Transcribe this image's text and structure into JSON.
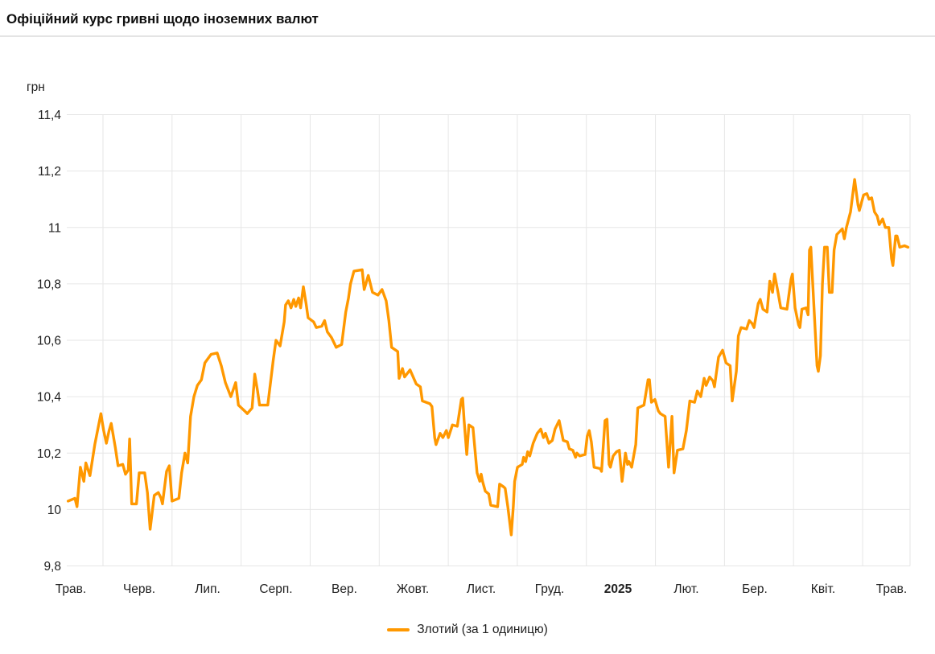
{
  "header": {
    "title": "Офіційний курс гривні щодо іноземних валют"
  },
  "legend": {
    "label": "Злотий (за 1 одиницю)",
    "swatch_color": "#ff9800"
  },
  "colors": {
    "line": "#ff9800",
    "grid": "#e6e6e6",
    "text": "#212121",
    "divider": "#e4e4e4",
    "watermark": "#bdbdbd"
  },
  "chart_data": {
    "type": "line",
    "title": "Офіційний курс гривні щодо іноземних валют",
    "xlabel": "",
    "ylabel": "грн",
    "ylim": [
      9.8,
      11.4
    ],
    "grid": true,
    "legend_position": "bottom",
    "x_unit": "months since start of May 2024 (0 = Трав. 2024, 12 = Трав. 2025)",
    "y_ticks": [
      {
        "value": 11.4,
        "label": "11,4"
      },
      {
        "value": 11.2,
        "label": "11,2"
      },
      {
        "value": 11.0,
        "label": "11"
      },
      {
        "value": 10.8,
        "label": "10,8"
      },
      {
        "value": 10.6,
        "label": "10,6"
      },
      {
        "value": 10.4,
        "label": "10,4"
      },
      {
        "value": 10.2,
        "label": "10,2"
      },
      {
        "value": 10.0,
        "label": "10"
      },
      {
        "value": 9.8,
        "label": "9,8"
      }
    ],
    "x_ticks": [
      {
        "label": "Трав.",
        "bold": false
      },
      {
        "label": "Черв.",
        "bold": false
      },
      {
        "label": "Лип.",
        "bold": false
      },
      {
        "label": "Серп.",
        "bold": false
      },
      {
        "label": "Вер.",
        "bold": false
      },
      {
        "label": "Жовт.",
        "bold": false
      },
      {
        "label": "Лист.",
        "bold": false
      },
      {
        "label": "Груд.",
        "bold": false
      },
      {
        "label": "2025",
        "bold": true
      },
      {
        "label": "Лют.",
        "bold": false
      },
      {
        "label": "Бер.",
        "bold": false
      },
      {
        "label": "Квіт.",
        "bold": false
      },
      {
        "label": "Трав.",
        "bold": false
      }
    ],
    "series": [
      {
        "name": "Злотий (за 1 одиницю)",
        "color": "#ff9800",
        "points": [
          [
            -0.04,
            10.03
          ],
          [
            0.06,
            10.04
          ],
          [
            0.09,
            10.01
          ],
          [
            0.14,
            10.15
          ],
          [
            0.19,
            10.1
          ],
          [
            0.22,
            10.165
          ],
          [
            0.28,
            10.12
          ],
          [
            0.35,
            10.23
          ],
          [
            0.44,
            10.34
          ],
          [
            0.48,
            10.28
          ],
          [
            0.52,
            10.235
          ],
          [
            0.56,
            10.28
          ],
          [
            0.59,
            10.305
          ],
          [
            0.65,
            10.22
          ],
          [
            0.69,
            10.155
          ],
          [
            0.76,
            10.16
          ],
          [
            0.8,
            10.125
          ],
          [
            0.84,
            10.14
          ],
          [
            0.86,
            10.25
          ],
          [
            0.89,
            10.02
          ],
          [
            0.96,
            10.02
          ],
          [
            1.0,
            10.13
          ],
          [
            1.08,
            10.13
          ],
          [
            1.12,
            10.06
          ],
          [
            1.16,
            9.93
          ],
          [
            1.22,
            10.05
          ],
          [
            1.28,
            10.06
          ],
          [
            1.32,
            10.04
          ],
          [
            1.34,
            10.02
          ],
          [
            1.4,
            10.135
          ],
          [
            1.44,
            10.155
          ],
          [
            1.48,
            10.03
          ],
          [
            1.58,
            10.04
          ],
          [
            1.62,
            10.13
          ],
          [
            1.67,
            10.2
          ],
          [
            1.71,
            10.165
          ],
          [
            1.75,
            10.33
          ],
          [
            1.8,
            10.4
          ],
          [
            1.85,
            10.44
          ],
          [
            1.91,
            10.46
          ],
          [
            1.96,
            10.52
          ],
          [
            2.05,
            10.55
          ],
          [
            2.14,
            10.555
          ],
          [
            2.2,
            10.51
          ],
          [
            2.26,
            10.45
          ],
          [
            2.34,
            10.4
          ],
          [
            2.41,
            10.45
          ],
          [
            2.45,
            10.37
          ],
          [
            2.54,
            10.35
          ],
          [
            2.58,
            10.34
          ],
          [
            2.65,
            10.36
          ],
          [
            2.69,
            10.48
          ],
          [
            2.73,
            10.42
          ],
          [
            2.76,
            10.37
          ],
          [
            2.88,
            10.37
          ],
          [
            2.96,
            10.53
          ],
          [
            3.0,
            10.6
          ],
          [
            3.06,
            10.58
          ],
          [
            3.12,
            10.665
          ],
          [
            3.14,
            10.725
          ],
          [
            3.18,
            10.74
          ],
          [
            3.22,
            10.715
          ],
          [
            3.26,
            10.745
          ],
          [
            3.29,
            10.72
          ],
          [
            3.33,
            10.75
          ],
          [
            3.36,
            10.715
          ],
          [
            3.4,
            10.79
          ],
          [
            3.44,
            10.73
          ],
          [
            3.47,
            10.68
          ],
          [
            3.55,
            10.665
          ],
          [
            3.59,
            10.645
          ],
          [
            3.67,
            10.65
          ],
          [
            3.71,
            10.67
          ],
          [
            3.75,
            10.63
          ],
          [
            3.81,
            10.61
          ],
          [
            3.85,
            10.59
          ],
          [
            3.88,
            10.575
          ],
          [
            3.96,
            10.585
          ],
          [
            4.02,
            10.7
          ],
          [
            4.06,
            10.75
          ],
          [
            4.09,
            10.8
          ],
          [
            4.14,
            10.845
          ],
          [
            4.26,
            10.85
          ],
          [
            4.29,
            10.78
          ],
          [
            4.35,
            10.83
          ],
          [
            4.41,
            10.77
          ],
          [
            4.49,
            10.76
          ],
          [
            4.55,
            10.78
          ],
          [
            4.61,
            10.74
          ],
          [
            4.65,
            10.67
          ],
          [
            4.69,
            10.575
          ],
          [
            4.78,
            10.56
          ],
          [
            4.8,
            10.465
          ],
          [
            4.85,
            10.5
          ],
          [
            4.88,
            10.47
          ],
          [
            4.96,
            10.495
          ],
          [
            5.05,
            10.445
          ],
          [
            5.11,
            10.435
          ],
          [
            5.14,
            10.385
          ],
          [
            5.25,
            10.375
          ],
          [
            5.28,
            10.365
          ],
          [
            5.32,
            10.255
          ],
          [
            5.34,
            10.23
          ],
          [
            5.4,
            10.27
          ],
          [
            5.44,
            10.255
          ],
          [
            5.49,
            10.28
          ],
          [
            5.52,
            10.255
          ],
          [
            5.58,
            10.3
          ],
          [
            5.65,
            10.295
          ],
          [
            5.71,
            10.39
          ],
          [
            5.73,
            10.395
          ],
          [
            5.75,
            10.315
          ],
          [
            5.79,
            10.195
          ],
          [
            5.82,
            10.3
          ],
          [
            5.88,
            10.29
          ],
          [
            5.94,
            10.13
          ],
          [
            5.98,
            10.1
          ],
          [
            6.0,
            10.125
          ],
          [
            6.02,
            10.1
          ],
          [
            6.06,
            10.065
          ],
          [
            6.11,
            10.055
          ],
          [
            6.14,
            10.015
          ],
          [
            6.24,
            10.01
          ],
          [
            6.27,
            10.09
          ],
          [
            6.33,
            10.08
          ],
          [
            6.35,
            10.075
          ],
          [
            6.39,
            10.01
          ],
          [
            6.44,
            9.91
          ],
          [
            6.47,
            10.01
          ],
          [
            6.49,
            10.1
          ],
          [
            6.53,
            10.15
          ],
          [
            6.6,
            10.16
          ],
          [
            6.62,
            10.185
          ],
          [
            6.65,
            10.17
          ],
          [
            6.68,
            10.205
          ],
          [
            6.71,
            10.19
          ],
          [
            6.76,
            10.235
          ],
          [
            6.82,
            10.27
          ],
          [
            6.87,
            10.285
          ],
          [
            6.91,
            10.255
          ],
          [
            6.94,
            10.27
          ],
          [
            6.99,
            10.235
          ],
          [
            7.04,
            10.245
          ],
          [
            7.08,
            10.285
          ],
          [
            7.14,
            10.315
          ],
          [
            7.2,
            10.245
          ],
          [
            7.26,
            10.24
          ],
          [
            7.29,
            10.215
          ],
          [
            7.34,
            10.21
          ],
          [
            7.38,
            10.185
          ],
          [
            7.4,
            10.2
          ],
          [
            7.44,
            10.19
          ],
          [
            7.52,
            10.195
          ],
          [
            7.55,
            10.26
          ],
          [
            7.58,
            10.28
          ],
          [
            7.61,
            10.24
          ],
          [
            7.65,
            10.15
          ],
          [
            7.74,
            10.145
          ],
          [
            7.76,
            10.135
          ],
          [
            7.81,
            10.315
          ],
          [
            7.84,
            10.32
          ],
          [
            7.87,
            10.16
          ],
          [
            7.89,
            10.15
          ],
          [
            7.93,
            10.19
          ],
          [
            7.98,
            10.205
          ],
          [
            8.02,
            10.21
          ],
          [
            8.06,
            10.1
          ],
          [
            8.11,
            10.2
          ],
          [
            8.14,
            10.16
          ],
          [
            8.16,
            10.17
          ],
          [
            8.2,
            10.15
          ],
          [
            8.26,
            10.23
          ],
          [
            8.29,
            10.36
          ],
          [
            8.38,
            10.37
          ],
          [
            8.44,
            10.46
          ],
          [
            8.46,
            10.46
          ],
          [
            8.49,
            10.38
          ],
          [
            8.54,
            10.39
          ],
          [
            8.59,
            10.35
          ],
          [
            8.62,
            10.34
          ],
          [
            8.69,
            10.33
          ],
          [
            8.74,
            10.15
          ],
          [
            8.79,
            10.33
          ],
          [
            8.82,
            10.13
          ],
          [
            8.87,
            10.21
          ],
          [
            8.95,
            10.215
          ],
          [
            9.0,
            10.28
          ],
          [
            9.05,
            10.385
          ],
          [
            9.12,
            10.38
          ],
          [
            9.16,
            10.42
          ],
          [
            9.21,
            10.4
          ],
          [
            9.26,
            10.465
          ],
          [
            9.29,
            10.44
          ],
          [
            9.34,
            10.47
          ],
          [
            9.39,
            10.455
          ],
          [
            9.41,
            10.435
          ],
          [
            9.47,
            10.54
          ],
          [
            9.53,
            10.565
          ],
          [
            9.58,
            10.52
          ],
          [
            9.64,
            10.51
          ],
          [
            9.67,
            10.385
          ],
          [
            9.73,
            10.49
          ],
          [
            9.76,
            10.615
          ],
          [
            9.8,
            10.645
          ],
          [
            9.88,
            10.64
          ],
          [
            9.92,
            10.67
          ],
          [
            9.96,
            10.66
          ],
          [
            9.99,
            10.645
          ],
          [
            10.05,
            10.73
          ],
          [
            10.08,
            10.745
          ],
          [
            10.12,
            10.71
          ],
          [
            10.18,
            10.7
          ],
          [
            10.22,
            10.81
          ],
          [
            10.26,
            10.77
          ],
          [
            10.29,
            10.835
          ],
          [
            10.34,
            10.77
          ],
          [
            10.38,
            10.715
          ],
          [
            10.47,
            10.71
          ],
          [
            10.53,
            10.815
          ],
          [
            10.55,
            10.835
          ],
          [
            10.59,
            10.715
          ],
          [
            10.64,
            10.655
          ],
          [
            10.66,
            10.645
          ],
          [
            10.69,
            10.71
          ],
          [
            10.75,
            10.715
          ],
          [
            10.78,
            10.69
          ],
          [
            10.8,
            10.92
          ],
          [
            10.82,
            10.93
          ],
          [
            10.87,
            10.7
          ],
          [
            10.91,
            10.51
          ],
          [
            10.93,
            10.49
          ],
          [
            10.96,
            10.545
          ],
          [
            10.99,
            10.8
          ],
          [
            11.02,
            10.93
          ],
          [
            11.06,
            10.93
          ],
          [
            11.09,
            10.77
          ],
          [
            11.13,
            10.77
          ],
          [
            11.16,
            10.92
          ],
          [
            11.2,
            10.975
          ],
          [
            11.24,
            10.985
          ],
          [
            11.28,
            10.995
          ],
          [
            11.31,
            10.96
          ],
          [
            11.34,
            11.0
          ],
          [
            11.4,
            11.055
          ],
          [
            11.46,
            11.17
          ],
          [
            11.51,
            11.08
          ],
          [
            11.53,
            11.06
          ],
          [
            11.59,
            11.115
          ],
          [
            11.64,
            11.12
          ],
          [
            11.67,
            11.1
          ],
          [
            11.71,
            11.105
          ],
          [
            11.75,
            11.055
          ],
          [
            11.79,
            11.04
          ],
          [
            11.82,
            11.01
          ],
          [
            11.87,
            11.03
          ],
          [
            11.91,
            11.0
          ],
          [
            11.96,
            11.0
          ],
          [
            12.0,
            10.89
          ],
          [
            12.02,
            10.865
          ],
          [
            12.06,
            10.97
          ],
          [
            12.08,
            10.97
          ],
          [
            12.12,
            10.93
          ],
          [
            12.19,
            10.935
          ],
          [
            12.24,
            10.93
          ]
        ]
      }
    ]
  }
}
